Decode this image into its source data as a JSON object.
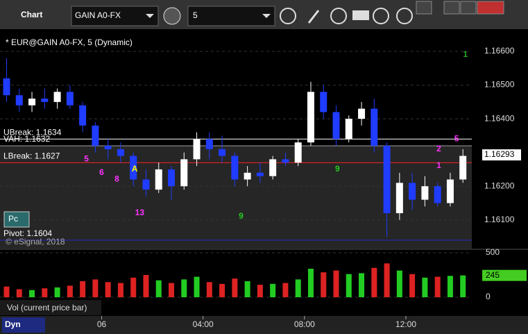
{
  "toolbar": {
    "app": "Chart",
    "symbol": "GAIN A0-FX",
    "interval": "5"
  },
  "status": "Dyn",
  "chart_data": {
    "type": "candlestick",
    "title": "* EUR@GAIN A0-FX, 5 (Dynamic)",
    "copyright": "© eSignal, 2018",
    "badge": "Pc",
    "up_color": "#ffffff",
    "down_color": "#1f3cff",
    "x": [
      -3.75,
      -3.25,
      -2.75,
      -2.25,
      -1.75,
      -1.25,
      -0.75,
      -0.25,
      0.25,
      0.75,
      1.25,
      1.75,
      2.25,
      2.75,
      3.25,
      3.75,
      4.25,
      4.75,
      5.25,
      5.75,
      6.25,
      6.75,
      7.25,
      7.75,
      8.25,
      8.75,
      9.25,
      9.75,
      10.25,
      10.75,
      11.25,
      11.75,
      12.25,
      12.75,
      13.25,
      13.75,
      14.25
    ],
    "open": [
      1.1652,
      1.1647,
      1.1644,
      1.1646,
      1.1645,
      1.1648,
      1.1644,
      1.1638,
      1.1632,
      1.1631,
      1.1629,
      1.1622,
      1.1619,
      1.1625,
      1.162,
      1.1628,
      1.1634,
      1.1631,
      1.1629,
      1.1622,
      1.1624,
      1.1623,
      1.1628,
      1.1627,
      1.1633,
      1.1648,
      1.1642,
      1.1634,
      1.164,
      1.1643,
      1.1632,
      1.1612,
      1.1621,
      1.1616,
      1.162,
      1.1615,
      1.1622
    ],
    "high": [
      1.1658,
      1.1649,
      1.1648,
      1.1649,
      1.1649,
      1.165,
      1.1645,
      1.1639,
      1.1634,
      1.1633,
      1.163,
      1.1625,
      1.1627,
      1.1626,
      1.163,
      1.1636,
      1.1636,
      1.1635,
      1.163,
      1.1626,
      1.1627,
      1.1629,
      1.163,
      1.1634,
      1.1651,
      1.165,
      1.1644,
      1.1641,
      1.1645,
      1.1646,
      1.1633,
      1.1624,
      1.1624,
      1.1623,
      1.1621,
      1.1624,
      1.1631
    ],
    "low": [
      1.1645,
      1.1642,
      1.1642,
      1.1643,
      1.1643,
      1.1643,
      1.1636,
      1.163,
      1.1628,
      1.1627,
      1.162,
      1.1617,
      1.1618,
      1.1616,
      1.1619,
      1.1626,
      1.1628,
      1.1627,
      1.162,
      1.162,
      1.1621,
      1.1622,
      1.1626,
      1.1626,
      1.1632,
      1.164,
      1.1632,
      1.1633,
      1.1638,
      1.163,
      1.1605,
      1.161,
      1.1613,
      1.1614,
      1.1614,
      1.1614,
      1.1621
    ],
    "close": [
      1.1647,
      1.1644,
      1.1646,
      1.1645,
      1.1648,
      1.1644,
      1.1638,
      1.1632,
      1.1631,
      1.1629,
      1.1622,
      1.1619,
      1.1625,
      1.162,
      1.1628,
      1.1634,
      1.1631,
      1.1629,
      1.1622,
      1.1624,
      1.1623,
      1.1628,
      1.1627,
      1.1633,
      1.1648,
      1.1642,
      1.1634,
      1.164,
      1.1643,
      1.1632,
      1.1612,
      1.1621,
      1.1616,
      1.162,
      1.1615,
      1.1622,
      1.1629
    ],
    "xlim": [
      -4.01,
      14.6
    ],
    "xticks": [
      {
        "value": 0,
        "label": "06"
      },
      {
        "value": 4,
        "label": "04:00"
      },
      {
        "value": 8,
        "label": "08:00"
      },
      {
        "value": 12,
        "label": "12:00"
      }
    ],
    "ylim": [
      1.16015,
      1.16666
    ],
    "yticks": [
      {
        "value": 1.161,
        "label": "1.16100"
      },
      {
        "value": 1.162,
        "label": "1.16200"
      },
      {
        "value": 1.164,
        "label": "1.16400"
      },
      {
        "value": 1.165,
        "label": "1.16500"
      },
      {
        "value": 1.166,
        "label": "1.16600"
      }
    ],
    "last_price": {
      "value": 1.16293,
      "label": "1.16293"
    },
    "levels": [
      {
        "label": "UBreak: 1.1634",
        "value": 1.1634,
        "color": "#ffffff"
      },
      {
        "label": "VAH: 1.1632",
        "value": 1.1632,
        "color": "#a0a0a0"
      },
      {
        "label": "LBreak: 1.1627",
        "value": 1.1627,
        "color": "#ff2020"
      },
      {
        "label": "Pivot: 1.1604",
        "value": 1.1604,
        "color": "#2828c8"
      }
    ],
    "annotations": [
      {
        "text": "5",
        "x": -0.6,
        "y": 1.1628,
        "color": "#ff33ff"
      },
      {
        "text": "6",
        "x": 0.0,
        "y": 1.1624,
        "color": "#ff33ff"
      },
      {
        "text": "8",
        "x": 0.6,
        "y": 1.1622,
        "color": "#ff33ff"
      },
      {
        "text": "A",
        "x": 1.3,
        "y": 1.1625,
        "color": "#ffff00"
      },
      {
        "text": "13",
        "x": 1.5,
        "y": 1.1612,
        "color": "#ff33ff"
      },
      {
        "text": "9",
        "x": 5.5,
        "y": 1.1611,
        "color": "#22cc22"
      },
      {
        "text": "9",
        "x": 9.3,
        "y": 1.1625,
        "color": "#22cc22"
      },
      {
        "text": "2",
        "x": 13.3,
        "y": 1.1631,
        "color": "#ff33ff"
      },
      {
        "text": "1",
        "x": 13.3,
        "y": 1.1626,
        "color": "#ff33ff"
      },
      {
        "text": "5",
        "x": 14.0,
        "y": 1.1634,
        "color": "#ff33ff"
      },
      {
        "text": "1",
        "x": 14.35,
        "y": 1.1659,
        "color": "#22aa22"
      }
    ],
    "volume": {
      "title": "Vol (current price bar)",
      "up_color": "#22cc22",
      "down_color": "#dd2222",
      "values": [
        120,
        90,
        80,
        100,
        110,
        130,
        180,
        200,
        170,
        160,
        220,
        250,
        190,
        160,
        200,
        230,
        170,
        150,
        210,
        180,
        140,
        150,
        160,
        200,
        320,
        280,
        300,
        260,
        270,
        330,
        380,
        300,
        260,
        220,
        230,
        240,
        245
      ],
      "ylim": [
        -31,
        531
      ],
      "yticks": [
        0,
        500
      ],
      "last": 245
    }
  }
}
